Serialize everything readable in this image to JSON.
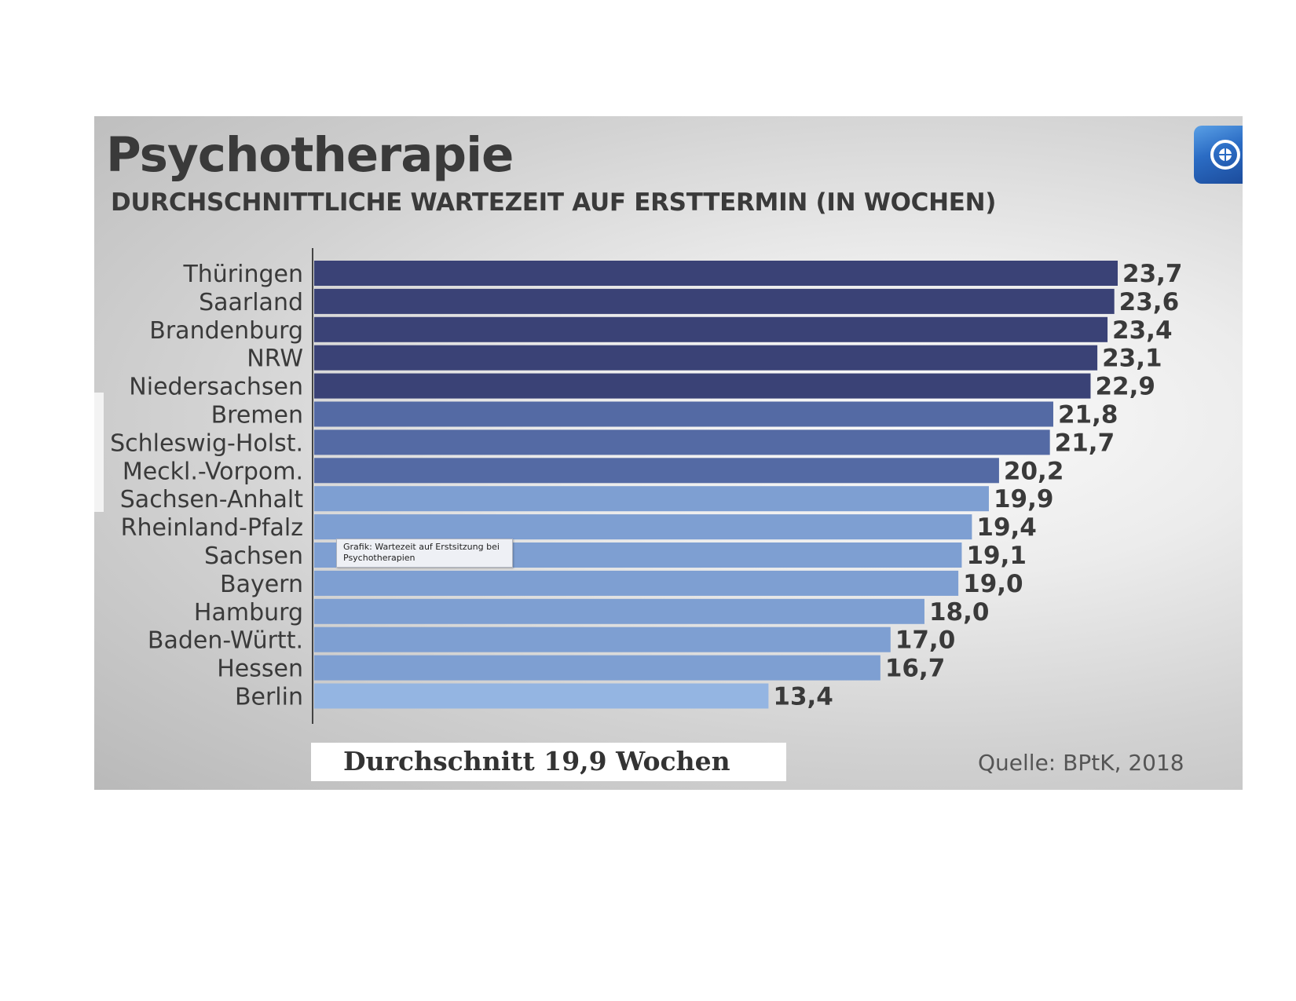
{
  "chart_data": {
    "type": "bar",
    "orientation": "horizontal",
    "title": "Psychotherapie",
    "subtitle": "DURCHSCHNITTLICHE WARTEZEIT AUF ERSTTERMIN (IN WOCHEN)",
    "categories": [
      "Thüringen",
      "Saarland",
      "Brandenburg",
      "NRW",
      "Niedersachsen",
      "Bremen",
      "Schleswig-Holst.",
      "Meckl.-Vorpom.",
      "Sachsen-Anhalt",
      "Rheinland-Pfalz",
      "Sachsen",
      "Bayern",
      "Hamburg",
      "Baden-Württ.",
      "Hessen",
      "Berlin"
    ],
    "values": [
      23.7,
      23.6,
      23.4,
      23.1,
      22.9,
      21.8,
      21.7,
      20.2,
      19.9,
      19.4,
      19.1,
      19.0,
      18.0,
      17.0,
      16.7,
      13.4
    ],
    "value_labels": [
      "23,7",
      "23,6",
      "23,4",
      "23,1",
      "22,9",
      "21,8",
      "21,7",
      "20,2",
      "19,9",
      "19,4",
      "19,1",
      "19,0",
      "18,0",
      "17,0",
      "16,7",
      "13,4"
    ],
    "bar_colors": [
      "#3a4276",
      "#3a4276",
      "#3a4276",
      "#3a4276",
      "#3a4276",
      "#546aa4",
      "#546aa4",
      "#546aa4",
      "#7e9fd2",
      "#7e9fd2",
      "#7e9fd2",
      "#7e9fd2",
      "#7e9fd2",
      "#7e9fd2",
      "#7e9fd2",
      "#94b5e2"
    ],
    "grid": false,
    "legend": "none"
  },
  "average_label": "Durchschnitt 19,9 Wochen",
  "source_label": "Quelle: BPtK, 2018",
  "tooltip": {
    "line1": "Grafik: Wartezeit auf Erstsitzung bei",
    "line2": "Psychotherapien"
  }
}
